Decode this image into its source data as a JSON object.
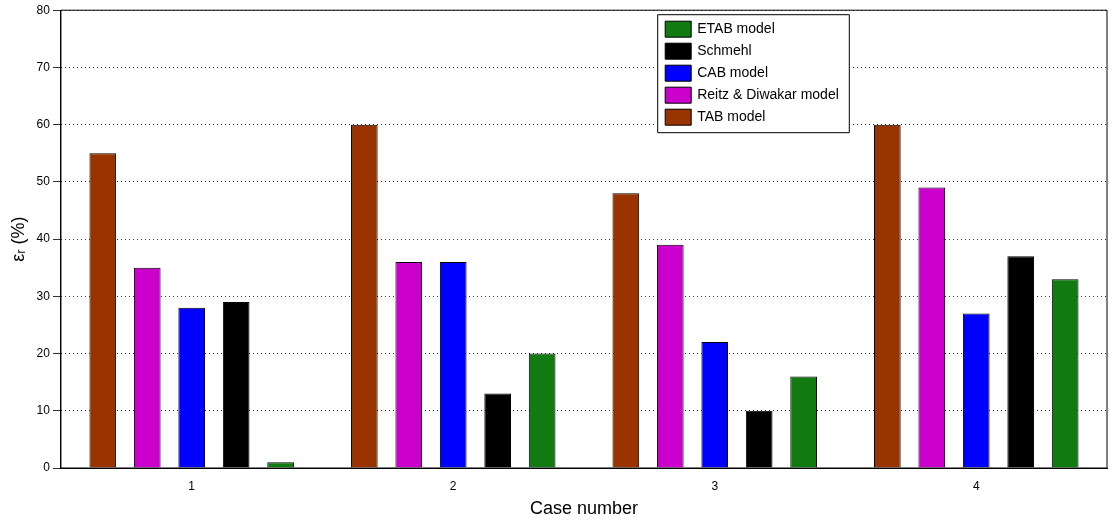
{
  "chart_data": {
    "type": "bar",
    "xlabel": "Case number",
    "ylabel": "εᵣ (%)",
    "categories": [
      "1",
      "2",
      "3",
      "4"
    ],
    "series": [
      {
        "name": "TAB model",
        "color": "#993300",
        "values": [
          55,
          60,
          48,
          60
        ]
      },
      {
        "name": "Reitz & Diwakar model",
        "color": "#cc00cc",
        "values": [
          35,
          36,
          39,
          49
        ]
      },
      {
        "name": "CAB model",
        "color": "#0000ff",
        "values": [
          28,
          36,
          22,
          27
        ]
      },
      {
        "name": "Schmehl",
        "color": "#000000",
        "values": [
          29,
          13,
          10,
          37
        ]
      },
      {
        "name": "ETAB model",
        "color": "#117a11",
        "values": [
          1,
          20,
          16,
          33
        ]
      }
    ],
    "ylim": [
      0,
      80
    ],
    "yticks": [
      0,
      10,
      20,
      30,
      40,
      50,
      60,
      70,
      80
    ],
    "grid": "y",
    "legend": "top right"
  }
}
